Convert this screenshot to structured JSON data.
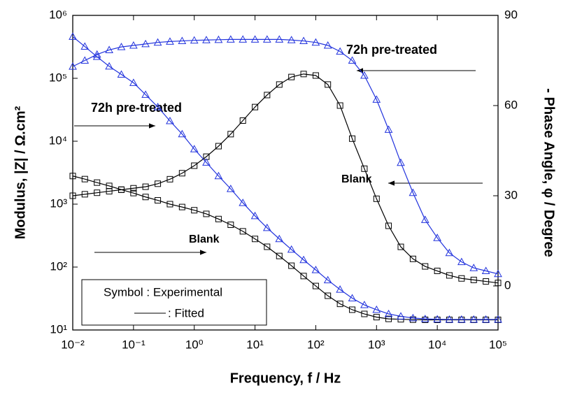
{
  "chart_data": {
    "type": "line",
    "xlabel": "Frequency, f / Hz",
    "ylabel": "Modulus, |Z| / Ω.cm²",
    "y2label": "- Phase Angle, φ / Degree",
    "xscale": "log",
    "yscale": "log",
    "xlim": [
      0.01,
      100000
    ],
    "ylim": [
      10,
      1000000
    ],
    "y2lim": [
      -14.65,
      90
    ],
    "xticks": [
      {
        "value": 0.01,
        "label": "10⁻²"
      },
      {
        "value": 0.1,
        "label": "10⁻¹"
      },
      {
        "value": 1,
        "label": "10⁰"
      },
      {
        "value": 10,
        "label": "10¹"
      },
      {
        "value": 100,
        "label": "10²"
      },
      {
        "value": 1000,
        "label": "10³"
      },
      {
        "value": 10000,
        "label": "10⁴"
      },
      {
        "value": 100000,
        "label": "10⁵"
      }
    ],
    "yticks": [
      {
        "value": 10,
        "label": "10¹"
      },
      {
        "value": 100,
        "label": "10²"
      },
      {
        "value": 1000,
        "label": "10³"
      },
      {
        "value": 10000,
        "label": "10⁴"
      },
      {
        "value": 100000,
        "label": "10⁵"
      },
      {
        "value": 1000000,
        "label": "10⁶"
      }
    ],
    "y2ticks": [
      0,
      30,
      60,
      90
    ],
    "legend": {
      "symbol": "Symbol : Experimental",
      "line": ": Fitted"
    },
    "x": [
      0.01,
      0.0158,
      0.0251,
      0.0398,
      0.0631,
      0.1,
      0.158,
      0.251,
      0.398,
      0.631,
      1,
      1.58,
      2.51,
      3.98,
      6.31,
      10,
      15.8,
      25.1,
      39.8,
      63.1,
      100,
      158,
      251,
      398,
      631,
      1000,
      1580,
      2510,
      3980,
      6310,
      10000,
      15800,
      25100,
      39800,
      63100,
      100000
    ],
    "series": [
      {
        "name": "Blank",
        "color": "#000000",
        "marker": "square",
        "axis": "y",
        "values": [
          2800,
          2500,
          2200,
          1950,
          1700,
          1500,
          1300,
          1150,
          1000,
          900,
          800,
          700,
          580,
          470,
          370,
          280,
          210,
          150,
          105,
          72,
          50,
          35,
          26,
          21,
          18,
          16,
          15,
          14.8,
          14.6,
          14.5,
          14.5,
          14.5,
          14.5,
          14.5,
          14.5,
          14.5
        ]
      },
      {
        "name": "Blank",
        "color": "#000000",
        "marker": "square",
        "axis": "y2",
        "values": [
          30,
          30.5,
          31,
          31.5,
          32,
          32.5,
          33,
          34,
          35.5,
          37.5,
          40,
          43,
          46.5,
          50.5,
          55,
          59.5,
          63.5,
          67,
          69.5,
          70.5,
          70,
          67,
          60,
          49,
          39,
          29,
          20,
          13,
          9,
          6.5,
          5,
          3.5,
          2.5,
          2,
          1.5,
          1
        ]
      },
      {
        "name": "72h pre-treated",
        "color": "#2233dd",
        "marker": "triangle",
        "axis": "y",
        "values": [
          460000,
          320000,
          220000,
          155000,
          115000,
          85000,
          55000,
          35000,
          21000,
          13000,
          7500,
          4600,
          2800,
          1750,
          1050,
          650,
          420,
          280,
          190,
          130,
          90,
          62,
          44,
          32,
          25,
          21,
          18,
          16.5,
          15.5,
          15,
          14.8,
          14.7,
          14.7,
          14.7,
          14.7,
          14.7
        ]
      },
      {
        "name": "72h pre-treated",
        "color": "#2233dd",
        "marker": "triangle",
        "axis": "y2",
        "values": [
          73,
          75,
          77,
          78.5,
          79.5,
          80,
          80.5,
          81,
          81.3,
          81.5,
          81.7,
          81.8,
          81.9,
          82,
          82,
          82,
          82,
          82,
          81.8,
          81.5,
          81,
          80,
          78,
          75,
          70,
          62,
          52,
          41,
          31,
          22,
          16,
          11,
          8,
          6,
          5,
          4
        ]
      }
    ]
  }
}
